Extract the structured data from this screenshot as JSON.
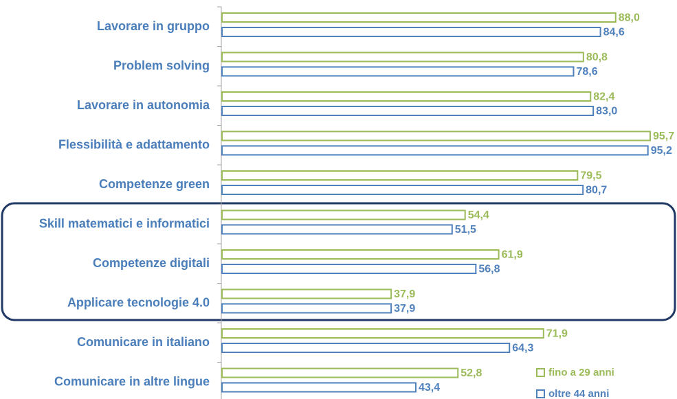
{
  "chart_data": {
    "type": "bar",
    "orientation": "horizontal",
    "categories": [
      "Lavorare in gruppo",
      "Problem solving",
      "Lavorare in autonomia",
      "Flessibilità e adattamento",
      "Competenze green",
      "Skill matematici e informatici",
      "Competenze digitali",
      "Applicare tecnologie 4.0",
      "Comunicare in italiano",
      "Comunicare in altre lingue"
    ],
    "series": [
      {
        "name": "fino a 29 anni",
        "color": "#9bbb59",
        "values": [
          88.0,
          80.8,
          82.4,
          95.7,
          79.5,
          54.4,
          61.9,
          37.9,
          71.9,
          52.8
        ],
        "value_labels": [
          "88,0",
          "80,8",
          "82,4",
          "95,7",
          "79,5",
          "54,4",
          "61,9",
          "37,9",
          "71,9",
          "52,8"
        ]
      },
      {
        "name": "oltre 44 anni",
        "color": "#4f81bd",
        "values": [
          84.6,
          78.6,
          83.0,
          95.2,
          80.7,
          51.5,
          56.8,
          37.9,
          64.3,
          43.4
        ],
        "value_labels": [
          "84,6",
          "78,6",
          "83,0",
          "95,2",
          "80,7",
          "51,5",
          "56,8",
          "37,9",
          "64,3",
          "43,4"
        ]
      }
    ],
    "xlim": [
      0,
      100
    ],
    "legend": "lower right"
  }
}
